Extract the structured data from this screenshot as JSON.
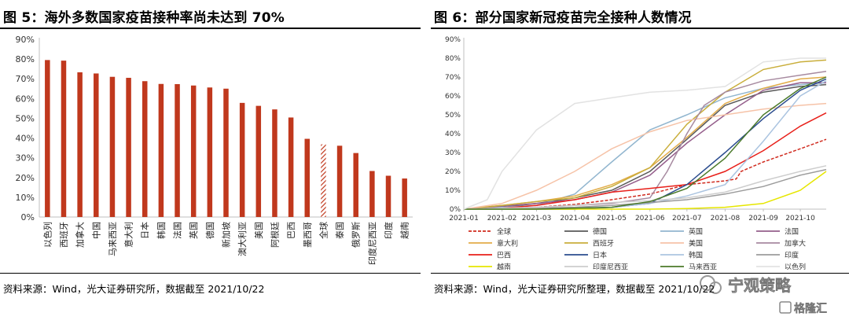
{
  "left": {
    "title": "图 5：海外多数国家疫苗接种率尚未达到 70%",
    "source": "资料来源：Wind，光大证券研究所，数据截至 2021/10/22"
  },
  "right": {
    "title": "图 6：部分国家新冠疫苗完全接种人数情况",
    "source": "资料来源：Wind，光大证券研究所整理，数据截至 2021/10/22"
  },
  "watermark": {
    "text1": "宁观策略",
    "text2": "格隆汇"
  },
  "chart_data": [
    {
      "type": "bar",
      "categories": [
        "以色列",
        "西班牙",
        "加拿大",
        "中国",
        "马来西亚",
        "意大利",
        "日本",
        "韩国",
        "法国",
        "英国",
        "德国",
        "新加坡",
        "澳大利亚",
        "美国",
        "阿根廷",
        "巴西",
        "墨西哥",
        "全球",
        "泰国",
        "俄罗斯",
        "印度尼西亚",
        "印度",
        "越南"
      ],
      "values": [
        79.5,
        79.2,
        73.3,
        72.7,
        71.0,
        70.5,
        68.8,
        67.4,
        67.3,
        66.6,
        65.6,
        65.0,
        57.8,
        56.3,
        54.5,
        50.4,
        39.6,
        36.8,
        36.1,
        32.4,
        23.3,
        20.9,
        19.5
      ],
      "highlight": "全球",
      "colors": {
        "bar": "#c0381d",
        "highlight_hatch": "#c0381d",
        "axis": "#bfbfbf"
      },
      "ylim": [
        0,
        90
      ],
      "yticks": [
        "0%",
        "10%",
        "20%",
        "30%",
        "40%",
        "50%",
        "60%",
        "70%",
        "80%",
        "90%"
      ],
      "xlabel": "",
      "ylabel": "",
      "grid": false
    },
    {
      "type": "line",
      "x_ticks": [
        "2021-01",
        "2021-02",
        "2021-03",
        "2021-04",
        "2021-05",
        "2021-06",
        "2021-07",
        "2021-08",
        "2021-09",
        "2021-10"
      ],
      "x_range": [
        "2021-01-01",
        "2021-10-22"
      ],
      "ylim": [
        0,
        90
      ],
      "yticks": [
        "0%",
        "10%",
        "20%",
        "30%",
        "40%",
        "50%",
        "60%",
        "70%",
        "80%",
        "90%"
      ],
      "grid": false,
      "legend_position": "bottom",
      "series": [
        {
          "name": "全球",
          "color": "#d02b1f",
          "dash": true,
          "points": [
            [
              "2021-01-01",
              0
            ],
            [
              "2021-03-01",
              1
            ],
            [
              "2021-04-01",
              2.5
            ],
            [
              "2021-05-01",
              5
            ],
            [
              "2021-06-01",
              8
            ],
            [
              "2021-07-01",
              13
            ],
            [
              "2021-08-01",
              15
            ],
            [
              "2021-08-10",
              16
            ],
            [
              "2021-08-14",
              20
            ],
            [
              "2021-09-01",
              25
            ],
            [
              "2021-10-01",
              32
            ],
            [
              "2021-10-22",
              37
            ]
          ]
        },
        {
          "name": "德国",
          "color": "#595959",
          "dash": false,
          "points": [
            [
              "2021-01-01",
              0
            ],
            [
              "2021-02-01",
              1
            ],
            [
              "2021-03-01",
              3
            ],
            [
              "2021-04-01",
              6
            ],
            [
              "2021-05-01",
              10
            ],
            [
              "2021-06-01",
              20
            ],
            [
              "2021-07-01",
              37
            ],
            [
              "2021-08-01",
              55
            ],
            [
              "2021-09-01",
              62
            ],
            [
              "2021-10-01",
              65
            ],
            [
              "2021-10-22",
              66
            ]
          ]
        },
        {
          "name": "英国",
          "color": "#92b6cf",
          "dash": false,
          "points": [
            [
              "2021-01-01",
              0
            ],
            [
              "2021-02-01",
              1
            ],
            [
              "2021-03-01",
              2
            ],
            [
              "2021-04-01",
              8
            ],
            [
              "2021-05-01",
              25
            ],
            [
              "2021-06-01",
              42
            ],
            [
              "2021-07-01",
              50
            ],
            [
              "2021-08-01",
              59
            ],
            [
              "2021-09-01",
              64
            ],
            [
              "2021-10-01",
              66
            ],
            [
              "2021-10-22",
              67
            ]
          ]
        },
        {
          "name": "法国",
          "color": "#955f8c",
          "dash": false,
          "points": [
            [
              "2021-01-01",
              0
            ],
            [
              "2021-03-01",
              3
            ],
            [
              "2021-04-01",
              5
            ],
            [
              "2021-05-01",
              9
            ],
            [
              "2021-06-01",
              18
            ],
            [
              "2021-07-01",
              35
            ],
            [
              "2021-08-01",
              50
            ],
            [
              "2021-09-01",
              63
            ],
            [
              "2021-10-01",
              67
            ],
            [
              "2021-10-22",
              67
            ]
          ]
        },
        {
          "name": "意大利",
          "color": "#e3ac48",
          "dash": false,
          "points": [
            [
              "2021-01-01",
              0
            ],
            [
              "2021-02-01",
              2
            ],
            [
              "2021-03-01",
              4
            ],
            [
              "2021-04-01",
              7
            ],
            [
              "2021-05-01",
              13
            ],
            [
              "2021-06-01",
              22
            ],
            [
              "2021-07-01",
              38
            ],
            [
              "2021-08-01",
              56
            ],
            [
              "2021-09-01",
              64
            ],
            [
              "2021-10-01",
              69
            ],
            [
              "2021-10-22",
              70
            ]
          ]
        },
        {
          "name": "西班牙",
          "color": "#c9ae3b",
          "dash": false,
          "points": [
            [
              "2021-01-01",
              0
            ],
            [
              "2021-02-01",
              2
            ],
            [
              "2021-03-01",
              4
            ],
            [
              "2021-04-01",
              6
            ],
            [
              "2021-05-01",
              12
            ],
            [
              "2021-06-01",
              22
            ],
            [
              "2021-07-01",
              45
            ],
            [
              "2021-08-01",
              62
            ],
            [
              "2021-09-01",
              74
            ],
            [
              "2021-10-01",
              78
            ],
            [
              "2021-10-22",
              79
            ]
          ]
        },
        {
          "name": "美国",
          "color": "#f6c3a8",
          "dash": false,
          "points": [
            [
              "2021-01-01",
              0
            ],
            [
              "2021-02-01",
              3
            ],
            [
              "2021-03-01",
              10
            ],
            [
              "2021-04-01",
              20
            ],
            [
              "2021-05-01",
              32
            ],
            [
              "2021-06-01",
              41
            ],
            [
              "2021-07-01",
              47
            ],
            [
              "2021-08-01",
              50
            ],
            [
              "2021-09-01",
              53
            ],
            [
              "2021-10-01",
              55
            ],
            [
              "2021-10-22",
              56
            ]
          ]
        },
        {
          "name": "加拿大",
          "color": "#a78aa0",
          "dash": false,
          "points": [
            [
              "2021-01-01",
              0
            ],
            [
              "2021-03-01",
              1
            ],
            [
              "2021-04-01",
              2
            ],
            [
              "2021-05-01",
              3
            ],
            [
              "2021-06-01",
              6
            ],
            [
              "2021-06-15",
              20
            ],
            [
              "2021-07-01",
              40
            ],
            [
              "2021-07-15",
              55
            ],
            [
              "2021-08-01",
              62
            ],
            [
              "2021-09-01",
              68
            ],
            [
              "2021-10-01",
              71
            ],
            [
              "2021-10-22",
              73
            ]
          ]
        },
        {
          "name": "巴西",
          "color": "#e8201a",
          "dash": false,
          "points": [
            [
              "2021-01-01",
              0
            ],
            [
              "2021-02-01",
              0.5
            ],
            [
              "2021-03-01",
              2
            ],
            [
              "2021-04-01",
              5
            ],
            [
              "2021-05-01",
              9
            ],
            [
              "2021-06-01",
              11
            ],
            [
              "2021-07-01",
              13
            ],
            [
              "2021-08-01",
              20
            ],
            [
              "2021-09-01",
              31
            ],
            [
              "2021-10-01",
              44
            ],
            [
              "2021-10-22",
              51
            ]
          ]
        },
        {
          "name": "日本",
          "color": "#2c4d8f",
          "dash": false,
          "points": [
            [
              "2021-01-01",
              0
            ],
            [
              "2021-04-01",
              0
            ],
            [
              "2021-05-01",
              1
            ],
            [
              "2021-06-01",
              3
            ],
            [
              "2021-07-01",
              13
            ],
            [
              "2021-08-01",
              30
            ],
            [
              "2021-09-01",
              48
            ],
            [
              "2021-10-01",
              63
            ],
            [
              "2021-10-22",
              69
            ]
          ]
        },
        {
          "name": "韩国",
          "color": "#abc4e0",
          "dash": false,
          "points": [
            [
              "2021-01-01",
              0
            ],
            [
              "2021-03-01",
              0
            ],
            [
              "2021-04-01",
              0.5
            ],
            [
              "2021-05-01",
              1
            ],
            [
              "2021-06-01",
              3
            ],
            [
              "2021-07-01",
              7
            ],
            [
              "2021-08-01",
              13
            ],
            [
              "2021-09-01",
              36
            ],
            [
              "2021-10-01",
              60
            ],
            [
              "2021-10-22",
              68
            ]
          ]
        },
        {
          "name": "印度",
          "color": "#9b9b9b",
          "dash": false,
          "points": [
            [
              "2021-01-01",
              0
            ],
            [
              "2021-03-01",
              0.5
            ],
            [
              "2021-04-01",
              1
            ],
            [
              "2021-05-01",
              2
            ],
            [
              "2021-06-01",
              3.5
            ],
            [
              "2021-07-01",
              5
            ],
            [
              "2021-08-01",
              8
            ],
            [
              "2021-09-01",
              12
            ],
            [
              "2021-10-01",
              18
            ],
            [
              "2021-10-22",
              21
            ]
          ]
        },
        {
          "name": "越南",
          "color": "#e6e600",
          "dash": false,
          "points": [
            [
              "2021-01-01",
              0
            ],
            [
              "2021-06-01",
              0
            ],
            [
              "2021-07-01",
              0.3
            ],
            [
              "2021-08-01",
              1
            ],
            [
              "2021-09-01",
              3
            ],
            [
              "2021-10-01",
              10
            ],
            [
              "2021-10-22",
              20
            ]
          ]
        },
        {
          "name": "印度尼西亚",
          "color": "#cdcdcd",
          "dash": false,
          "points": [
            [
              "2021-01-01",
              0
            ],
            [
              "2021-03-01",
              1
            ],
            [
              "2021-04-01",
              2
            ],
            [
              "2021-05-01",
              3.5
            ],
            [
              "2021-06-01",
              4.5
            ],
            [
              "2021-07-01",
              6
            ],
            [
              "2021-08-01",
              9
            ],
            [
              "2021-09-01",
              15
            ],
            [
              "2021-10-01",
              20
            ],
            [
              "2021-10-22",
              23
            ]
          ]
        },
        {
          "name": "马来西亚",
          "color": "#4b7a2a",
          "dash": false,
          "points": [
            [
              "2021-01-01",
              0
            ],
            [
              "2021-03-01",
              0
            ],
            [
              "2021-04-01",
              0.5
            ],
            [
              "2021-05-01",
              1
            ],
            [
              "2021-06-01",
              4
            ],
            [
              "2021-07-01",
              11
            ],
            [
              "2021-08-01",
              27
            ],
            [
              "2021-09-01",
              50
            ],
            [
              "2021-10-01",
              64
            ],
            [
              "2021-10-22",
              70
            ]
          ]
        },
        {
          "name": "以色列",
          "color": "#e2e2e2",
          "dash": false,
          "points": [
            [
              "2021-01-01",
              0
            ],
            [
              "2021-01-20",
              5
            ],
            [
              "2021-02-01",
              20
            ],
            [
              "2021-03-01",
              42
            ],
            [
              "2021-04-01",
              56
            ],
            [
              "2021-05-01",
              59
            ],
            [
              "2021-06-01",
              62
            ],
            [
              "2021-07-01",
              63
            ],
            [
              "2021-08-01",
              65
            ],
            [
              "2021-09-01",
              78
            ],
            [
              "2021-10-01",
              80
            ],
            [
              "2021-10-22",
              80
            ]
          ]
        }
      ]
    }
  ]
}
